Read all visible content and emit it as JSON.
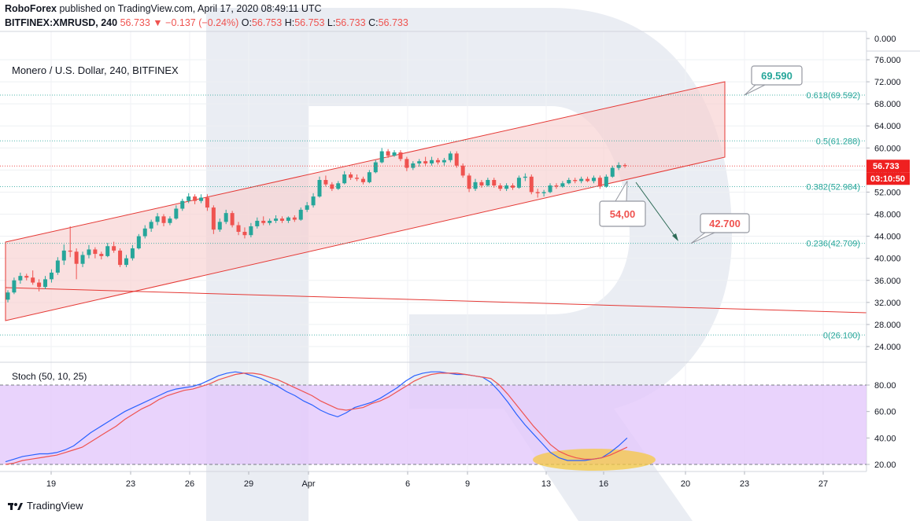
{
  "header": {
    "publisher": "RoboForex",
    "published_text": "published on TradingView.com, April 17, 2020 08:49:11 UTC",
    "symbol": "BITFINEX:XMRUSD, 240",
    "last": "56.733",
    "change": "−0.137 (−0.24%)",
    "o_label": "O:",
    "o": "56.753",
    "h_label": "H:",
    "h": "56.753",
    "l_label": "L:",
    "l": "56.733",
    "c_label": "C:",
    "c": "56.733"
  },
  "pair_title": "Monero / U.S. Dollar, 240, BITFINEX",
  "stoch_title": "Stoch (50, 10, 25)",
  "footer_logo": "TradingView",
  "colors": {
    "up": "#26a69a",
    "down": "#ef5350",
    "channel": "#e53935",
    "channel_fill": "#f8d0d0",
    "stoch_bg": "#e3c8fb",
    "k_line": "#2962ff",
    "d_line": "#ef5350",
    "watermark": "#b8c3d6",
    "highlight": "#f5c842"
  },
  "chart_data": [
    {
      "type": "line",
      "title": "Monero / U.S. Dollar, 240, BITFINEX",
      "x_tick_labels": [
        "19",
        "23",
        "26",
        "29",
        "Apr",
        "6",
        "9",
        "13",
        "16",
        "20",
        "23",
        "27"
      ],
      "y_tick_labels": [
        "0.000",
        "76.000",
        "72.000",
        "68.000",
        "64.000",
        "60.000",
        "56.000",
        "52.000",
        "48.000",
        "44.000",
        "40.000",
        "36.000",
        "32.000",
        "28.000",
        "24.000"
      ],
      "ylim": [
        21.5,
        78
      ],
      "candles": [
        {
          "x": 0,
          "o": 32.5,
          "h": 34.2,
          "l": 32.0,
          "c": 33.8
        },
        {
          "x": 1,
          "o": 33.8,
          "h": 36.5,
          "l": 33.5,
          "c": 36.0
        },
        {
          "x": 2,
          "o": 36.0,
          "h": 37.4,
          "l": 35.4,
          "c": 36.8
        },
        {
          "x": 3,
          "o": 36.8,
          "h": 37.2,
          "l": 36.0,
          "c": 36.5
        },
        {
          "x": 4,
          "o": 36.5,
          "h": 37.8,
          "l": 35.2,
          "c": 35.6
        },
        {
          "x": 5,
          "o": 35.6,
          "h": 36.2,
          "l": 34.0,
          "c": 34.8
        },
        {
          "x": 6,
          "o": 34.8,
          "h": 36.8,
          "l": 34.4,
          "c": 36.2
        },
        {
          "x": 7,
          "o": 36.2,
          "h": 38.0,
          "l": 35.6,
          "c": 37.4
        },
        {
          "x": 8,
          "o": 37.4,
          "h": 40.2,
          "l": 37.0,
          "c": 39.6
        },
        {
          "x": 9,
          "o": 39.6,
          "h": 42.5,
          "l": 38.8,
          "c": 41.4
        },
        {
          "x": 10,
          "o": 41.4,
          "h": 45.8,
          "l": 40.2,
          "c": 41.2
        },
        {
          "x": 11,
          "o": 41.2,
          "h": 41.8,
          "l": 36.2,
          "c": 39.0
        },
        {
          "x": 12,
          "o": 39.0,
          "h": 41.2,
          "l": 38.4,
          "c": 40.6
        },
        {
          "x": 13,
          "o": 40.6,
          "h": 42.4,
          "l": 40.0,
          "c": 41.6
        },
        {
          "x": 14,
          "o": 41.6,
          "h": 42.0,
          "l": 40.0,
          "c": 40.8
        },
        {
          "x": 15,
          "o": 40.8,
          "h": 41.2,
          "l": 39.8,
          "c": 40.4
        },
        {
          "x": 16,
          "o": 40.4,
          "h": 42.8,
          "l": 40.2,
          "c": 42.2
        },
        {
          "x": 17,
          "o": 42.2,
          "h": 43.0,
          "l": 41.0,
          "c": 41.4
        },
        {
          "x": 18,
          "o": 41.4,
          "h": 41.8,
          "l": 38.4,
          "c": 38.8
        },
        {
          "x": 19,
          "o": 38.8,
          "h": 40.6,
          "l": 38.4,
          "c": 40.0
        },
        {
          "x": 20,
          "o": 40.0,
          "h": 42.4,
          "l": 39.6,
          "c": 41.8
        },
        {
          "x": 21,
          "o": 41.8,
          "h": 44.4,
          "l": 41.6,
          "c": 44.0
        },
        {
          "x": 22,
          "o": 44.0,
          "h": 46.0,
          "l": 43.6,
          "c": 45.4
        },
        {
          "x": 23,
          "o": 45.4,
          "h": 47.0,
          "l": 44.8,
          "c": 46.6
        },
        {
          "x": 24,
          "o": 46.6,
          "h": 48.2,
          "l": 46.0,
          "c": 47.6
        },
        {
          "x": 25,
          "o": 47.6,
          "h": 48.0,
          "l": 45.8,
          "c": 46.4
        },
        {
          "x": 26,
          "o": 46.4,
          "h": 47.6,
          "l": 46.0,
          "c": 47.2
        },
        {
          "x": 27,
          "o": 47.2,
          "h": 49.6,
          "l": 47.0,
          "c": 49.0
        },
        {
          "x": 28,
          "o": 49.0,
          "h": 50.8,
          "l": 48.6,
          "c": 50.4
        },
        {
          "x": 29,
          "o": 50.4,
          "h": 51.8,
          "l": 50.0,
          "c": 51.2
        },
        {
          "x": 30,
          "o": 51.2,
          "h": 51.6,
          "l": 49.8,
          "c": 50.4
        },
        {
          "x": 31,
          "o": 50.4,
          "h": 51.6,
          "l": 50.0,
          "c": 51.0
        },
        {
          "x": 32,
          "o": 51.0,
          "h": 51.6,
          "l": 48.6,
          "c": 49.2
        },
        {
          "x": 33,
          "o": 49.2,
          "h": 49.6,
          "l": 44.4,
          "c": 45.2
        },
        {
          "x": 34,
          "o": 45.2,
          "h": 47.2,
          "l": 44.8,
          "c": 46.6
        },
        {
          "x": 35,
          "o": 46.6,
          "h": 48.8,
          "l": 46.2,
          "c": 48.2
        },
        {
          "x": 36,
          "o": 48.2,
          "h": 48.6,
          "l": 45.6,
          "c": 46.0
        },
        {
          "x": 37,
          "o": 46.0,
          "h": 46.6,
          "l": 44.2,
          "c": 44.8
        },
        {
          "x": 38,
          "o": 44.8,
          "h": 45.6,
          "l": 43.6,
          "c": 44.2
        },
        {
          "x": 39,
          "o": 44.2,
          "h": 46.4,
          "l": 43.8,
          "c": 45.8
        },
        {
          "x": 40,
          "o": 45.8,
          "h": 47.4,
          "l": 45.4,
          "c": 46.8
        },
        {
          "x": 41,
          "o": 46.8,
          "h": 47.6,
          "l": 46.0,
          "c": 46.4
        },
        {
          "x": 42,
          "o": 46.4,
          "h": 47.2,
          "l": 46.0,
          "c": 46.8
        },
        {
          "x": 43,
          "o": 46.8,
          "h": 47.8,
          "l": 46.4,
          "c": 47.2
        },
        {
          "x": 44,
          "o": 47.2,
          "h": 47.6,
          "l": 46.4,
          "c": 46.8
        },
        {
          "x": 45,
          "o": 46.8,
          "h": 47.6,
          "l": 46.4,
          "c": 47.4
        },
        {
          "x": 46,
          "o": 47.4,
          "h": 47.8,
          "l": 46.6,
          "c": 47.0
        },
        {
          "x": 47,
          "o": 47.0,
          "h": 49.2,
          "l": 46.8,
          "c": 48.8
        },
        {
          "x": 48,
          "o": 48.8,
          "h": 50.2,
          "l": 48.4,
          "c": 49.6
        },
        {
          "x": 49,
          "o": 49.6,
          "h": 51.8,
          "l": 49.2,
          "c": 51.2
        },
        {
          "x": 50,
          "o": 51.2,
          "h": 54.8,
          "l": 51.0,
          "c": 54.2
        },
        {
          "x": 51,
          "o": 54.2,
          "h": 55.0,
          "l": 53.0,
          "c": 53.4
        },
        {
          "x": 52,
          "o": 53.4,
          "h": 53.8,
          "l": 52.2,
          "c": 52.6
        },
        {
          "x": 53,
          "o": 52.6,
          "h": 54.0,
          "l": 52.4,
          "c": 53.6
        },
        {
          "x": 54,
          "o": 53.6,
          "h": 55.8,
          "l": 53.4,
          "c": 55.2
        },
        {
          "x": 55,
          "o": 55.2,
          "h": 55.6,
          "l": 54.2,
          "c": 54.6
        },
        {
          "x": 56,
          "o": 54.6,
          "h": 55.2,
          "l": 54.0,
          "c": 54.4
        },
        {
          "x": 57,
          "o": 54.4,
          "h": 54.8,
          "l": 53.4,
          "c": 53.8
        },
        {
          "x": 58,
          "o": 53.8,
          "h": 56.0,
          "l": 53.6,
          "c": 55.6
        },
        {
          "x": 59,
          "o": 55.6,
          "h": 57.8,
          "l": 55.4,
          "c": 57.4
        },
        {
          "x": 60,
          "o": 57.4,
          "h": 60.0,
          "l": 57.2,
          "c": 59.4
        },
        {
          "x": 61,
          "o": 59.4,
          "h": 59.8,
          "l": 58.2,
          "c": 58.6
        },
        {
          "x": 62,
          "o": 58.6,
          "h": 59.6,
          "l": 58.4,
          "c": 59.2
        },
        {
          "x": 63,
          "o": 59.2,
          "h": 59.6,
          "l": 57.6,
          "c": 58.0
        },
        {
          "x": 64,
          "o": 58.0,
          "h": 58.4,
          "l": 55.8,
          "c": 56.4
        },
        {
          "x": 65,
          "o": 56.4,
          "h": 57.6,
          "l": 56.0,
          "c": 57.2
        },
        {
          "x": 66,
          "o": 57.2,
          "h": 58.0,
          "l": 56.6,
          "c": 57.6
        },
        {
          "x": 67,
          "o": 57.6,
          "h": 58.4,
          "l": 56.8,
          "c": 57.2
        },
        {
          "x": 68,
          "o": 57.2,
          "h": 58.4,
          "l": 56.8,
          "c": 57.8
        },
        {
          "x": 69,
          "o": 57.8,
          "h": 58.2,
          "l": 57.0,
          "c": 57.4
        },
        {
          "x": 70,
          "o": 57.4,
          "h": 58.2,
          "l": 56.8,
          "c": 57.8
        },
        {
          "x": 71,
          "o": 57.8,
          "h": 59.4,
          "l": 57.4,
          "c": 59.0
        },
        {
          "x": 72,
          "o": 59.0,
          "h": 59.4,
          "l": 56.4,
          "c": 56.8
        },
        {
          "x": 73,
          "o": 56.8,
          "h": 57.2,
          "l": 54.6,
          "c": 55.0
        },
        {
          "x": 74,
          "o": 55.0,
          "h": 55.4,
          "l": 52.0,
          "c": 52.6
        },
        {
          "x": 75,
          "o": 52.6,
          "h": 54.4,
          "l": 52.2,
          "c": 53.8
        },
        {
          "x": 76,
          "o": 53.8,
          "h": 54.2,
          "l": 52.8,
          "c": 53.2
        },
        {
          "x": 77,
          "o": 53.2,
          "h": 54.6,
          "l": 53.0,
          "c": 54.2
        },
        {
          "x": 78,
          "o": 54.2,
          "h": 54.6,
          "l": 52.8,
          "c": 53.2
        },
        {
          "x": 79,
          "o": 53.2,
          "h": 53.6,
          "l": 52.2,
          "c": 52.6
        },
        {
          "x": 80,
          "o": 52.6,
          "h": 53.6,
          "l": 52.2,
          "c": 53.2
        },
        {
          "x": 81,
          "o": 53.2,
          "h": 53.6,
          "l": 52.4,
          "c": 52.8
        },
        {
          "x": 82,
          "o": 52.8,
          "h": 55.0,
          "l": 52.6,
          "c": 54.6
        },
        {
          "x": 83,
          "o": 54.6,
          "h": 55.4,
          "l": 54.0,
          "c": 54.8
        },
        {
          "x": 84,
          "o": 54.8,
          "h": 55.2,
          "l": 51.6,
          "c": 52.0
        },
        {
          "x": 85,
          "o": 52.0,
          "h": 52.6,
          "l": 51.0,
          "c": 51.8
        },
        {
          "x": 86,
          "o": 51.8,
          "h": 52.4,
          "l": 51.2,
          "c": 52.0
        },
        {
          "x": 87,
          "o": 52.0,
          "h": 53.6,
          "l": 51.8,
          "c": 53.2
        },
        {
          "x": 88,
          "o": 53.2,
          "h": 53.6,
          "l": 52.6,
          "c": 53.0
        },
        {
          "x": 89,
          "o": 53.0,
          "h": 54.0,
          "l": 52.8,
          "c": 53.6
        },
        {
          "x": 90,
          "o": 53.6,
          "h": 54.6,
          "l": 53.4,
          "c": 54.2
        },
        {
          "x": 91,
          "o": 54.2,
          "h": 54.6,
          "l": 53.6,
          "c": 54.0
        },
        {
          "x": 92,
          "o": 54.0,
          "h": 54.8,
          "l": 53.6,
          "c": 54.4
        },
        {
          "x": 93,
          "o": 54.4,
          "h": 54.8,
          "l": 53.8,
          "c": 54.0
        },
        {
          "x": 94,
          "o": 54.0,
          "h": 55.0,
          "l": 53.6,
          "c": 54.6
        },
        {
          "x": 95,
          "o": 54.6,
          "h": 55.0,
          "l": 52.6,
          "c": 53.0
        },
        {
          "x": 96,
          "o": 53.0,
          "h": 55.2,
          "l": 52.8,
          "c": 54.8
        },
        {
          "x": 97,
          "o": 54.8,
          "h": 56.8,
          "l": 54.6,
          "c": 56.4
        },
        {
          "x": 98,
          "o": 56.4,
          "h": 57.4,
          "l": 56.0,
          "c": 56.9
        },
        {
          "x": 99,
          "o": 56.9,
          "h": 57.2,
          "l": 56.4,
          "c": 56.733
        }
      ],
      "last_price_label": "56.733",
      "countdown_label": "03:10:50",
      "fibonacci": [
        {
          "label": "0.618(69.592)",
          "value": 69.592
        },
        {
          "label": "0.5(61.288)",
          "value": 61.288
        },
        {
          "label": "0.382(52.984)",
          "value": 52.984
        },
        {
          "label": "0.236(42.709)",
          "value": 42.709
        },
        {
          "label": "0(26.100)",
          "value": 26.1
        }
      ],
      "annotations": [
        {
          "text": "69.590",
          "value": 69.59
        },
        {
          "text": "54,00",
          "value": 54.0
        },
        {
          "text": "42.700",
          "value": 42.7
        }
      ]
    },
    {
      "type": "line",
      "title": "Stoch (50, 10, 25)",
      "ylim": [
        16,
        96
      ],
      "y_tick_labels": [
        "80.00",
        "60.00",
        "40.00",
        "20.00"
      ],
      "levels": [
        80,
        20
      ],
      "series": [
        {
          "values": [
            22,
            24,
            26,
            27,
            28,
            28,
            29,
            31,
            34,
            39,
            44,
            48,
            52,
            56,
            60,
            63,
            66,
            69,
            72,
            75,
            77,
            78,
            79,
            81,
            84,
            87,
            89,
            90,
            89,
            87,
            85,
            82,
            79,
            75,
            72,
            68,
            65,
            61,
            58,
            56,
            59,
            63,
            65,
            67,
            70,
            74,
            78,
            83,
            87,
            89,
            90,
            90,
            89,
            88,
            88,
            87,
            86,
            82,
            75,
            67,
            58,
            50,
            43,
            36,
            29,
            25,
            23,
            23,
            23,
            24,
            25,
            29,
            34,
            40
          ]
        },
        {
          "values": [
            20,
            21,
            23,
            24,
            25,
            26,
            27,
            29,
            31,
            33,
            37,
            41,
            45,
            49,
            54,
            58,
            62,
            65,
            69,
            72,
            74,
            76,
            77,
            79,
            81,
            84,
            86,
            88,
            89,
            89,
            88,
            86,
            84,
            81,
            78,
            75,
            72,
            68,
            65,
            62,
            61,
            62,
            63,
            66,
            68,
            71,
            75,
            79,
            83,
            86,
            88,
            89,
            89,
            89,
            88,
            87,
            86,
            85,
            80,
            73,
            65,
            57,
            49,
            42,
            35,
            30,
            27,
            25,
            24,
            24,
            25,
            27,
            30,
            33
          ]
        }
      ]
    }
  ]
}
